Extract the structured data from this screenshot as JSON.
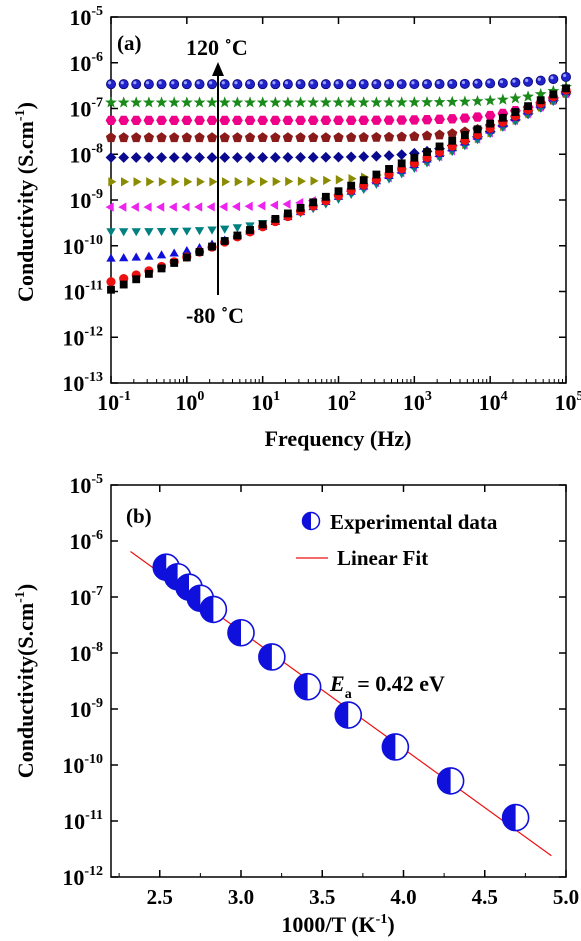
{
  "chart_data": [
    {
      "type": "scatter",
      "panel_label": "(a)",
      "xlabel": "Frequency (Hz)",
      "ylabel": "Conductivity (S.cm",
      "ylabel_sup": "-1",
      "ylabel_close": ")",
      "xscale": "log",
      "yscale": "log",
      "xlim": [
        0.1,
        100000
      ],
      "ylim": [
        1e-13,
        1e-05
      ],
      "x_ticks": [
        {
          "base": "10",
          "exp": "-1"
        },
        {
          "base": "10",
          "exp": "0"
        },
        {
          "base": "10",
          "exp": "1"
        },
        {
          "base": "10",
          "exp": "2"
        },
        {
          "base": "10",
          "exp": "3"
        },
        {
          "base": "10",
          "exp": "4"
        },
        {
          "base": "10",
          "exp": "5"
        }
      ],
      "y_ticks": [
        {
          "base": "10",
          "exp": "-13"
        },
        {
          "base": "10",
          "exp": "-12"
        },
        {
          "base": "10",
          "exp": "-11"
        },
        {
          "base": "10",
          "exp": "-10"
        },
        {
          "base": "10",
          "exp": "-9"
        },
        {
          "base": "10",
          "exp": "-8"
        },
        {
          "base": "10",
          "exp": "-7"
        },
        {
          "base": "10",
          "exp": "-6"
        },
        {
          "base": "10",
          "exp": "-5"
        }
      ],
      "annotations": {
        "top": "120 ˚C",
        "bottom": "-80 ˚C"
      },
      "series": [
        {
          "marker": "square",
          "color": "#000000",
          "dc": 3e-12,
          "alpha": 0.72
        },
        {
          "marker": "circle",
          "color": "#ee1111",
          "dc": 1.1e-11,
          "alpha": 0.66
        },
        {
          "marker": "triangle-up",
          "color": "#1010dd",
          "dc": 5e-11,
          "alpha": 0.64
        },
        {
          "marker": "triangle-down",
          "color": "#008080",
          "dc": 2.1e-10,
          "alpha": 0.62
        },
        {
          "marker": "triangle-left",
          "color": "#ee22ee",
          "dc": 7e-10,
          "alpha": 0.62
        },
        {
          "marker": "triangle-right",
          "color": "#8b8b00",
          "dc": 2.5e-09,
          "alpha": 0.62
        },
        {
          "marker": "diamond",
          "color": "#0a0a90",
          "dc": 8.5e-09,
          "alpha": 0.62
        },
        {
          "marker": "pentagon",
          "color": "#8b1a1a",
          "dc": 2.3e-08,
          "alpha": 0.62
        },
        {
          "marker": "hexagon",
          "color": "#ee0088",
          "dc": 5.5e-08,
          "alpha": 0.62
        },
        {
          "marker": "star",
          "color": "#1a8a1a",
          "dc": 1.35e-07,
          "alpha": 0.62
        },
        {
          "marker": "sphere",
          "color": "#2222cc",
          "dc": 3.4e-07,
          "alpha": 0.62
        }
      ],
      "x_points": [
        0.1,
        0.147,
        0.215,
        0.316,
        0.464,
        0.681,
        1.0,
        1.47,
        2.15,
        3.16,
        4.64,
        6.81,
        10,
        14.7,
        21.5,
        31.6,
        46.4,
        68.1,
        100,
        147,
        215,
        316,
        464,
        681,
        1000,
        1470,
        2150,
        3160,
        4640,
        6810,
        10000,
        14700,
        21500,
        31600,
        46400,
        68100,
        100000
      ],
      "ac_prefactor": 5.5e-11,
      "ac_exponent": 0.62,
      "hf_prefactor": 8e-13,
      "hf_exponent": 1.05
    },
    {
      "type": "scatter",
      "panel_label": "(b)",
      "xlabel": "1000/T (K",
      "xlabel_sup": "-1",
      "xlabel_close": ")",
      "ylabel": "Conductivity(S.cm",
      "ylabel_sup": "-1",
      "ylabel_close": ")",
      "yscale": "log",
      "xlim": [
        2.2,
        5.0
      ],
      "ylim": [
        1e-12,
        1e-05
      ],
      "x_ticks": [
        "2.5",
        "3.0",
        "3.5",
        "4.0",
        "4.5",
        "5.0"
      ],
      "y_ticks": [
        {
          "base": "10",
          "exp": "-12"
        },
        {
          "base": "10",
          "exp": "-11"
        },
        {
          "base": "10",
          "exp": "-10"
        },
        {
          "base": "10",
          "exp": "-9"
        },
        {
          "base": "10",
          "exp": "-8"
        },
        {
          "base": "10",
          "exp": "-7"
        },
        {
          "base": "10",
          "exp": "-6"
        },
        {
          "base": "10",
          "exp": "-5"
        }
      ],
      "legend": {
        "data_label": "Experimental data",
        "fit_label": "Linear Fit",
        "placement": "top-right"
      },
      "annotation": {
        "symbol": "E",
        "subscript": "a",
        "value": " = 0.42 eV"
      },
      "points": [
        {
          "x": 2.54,
          "y": 3.4e-07
        },
        {
          "x": 2.61,
          "y": 2.3e-07
        },
        {
          "x": 2.68,
          "y": 1.5e-07
        },
        {
          "x": 2.75,
          "y": 9.5e-08
        },
        {
          "x": 2.83,
          "y": 6e-08
        },
        {
          "x": 3.0,
          "y": 2.3e-08
        },
        {
          "x": 3.19,
          "y": 8.5e-09
        },
        {
          "x": 3.41,
          "y": 2.5e-09
        },
        {
          "x": 3.66,
          "y": 7.8e-10
        },
        {
          "x": 3.95,
          "y": 2.1e-10
        },
        {
          "x": 4.29,
          "y": 5.2e-11
        },
        {
          "x": 4.69,
          "y": 1.15e-11
        }
      ],
      "fit": {
        "x": [
          2.32,
          4.91
        ],
        "y": [
          6.5e-07,
          2.4e-12
        ],
        "color": "#ee1111"
      },
      "marker_colors": {
        "fill": "#1010dd",
        "edge": "#1010dd"
      }
    }
  ]
}
